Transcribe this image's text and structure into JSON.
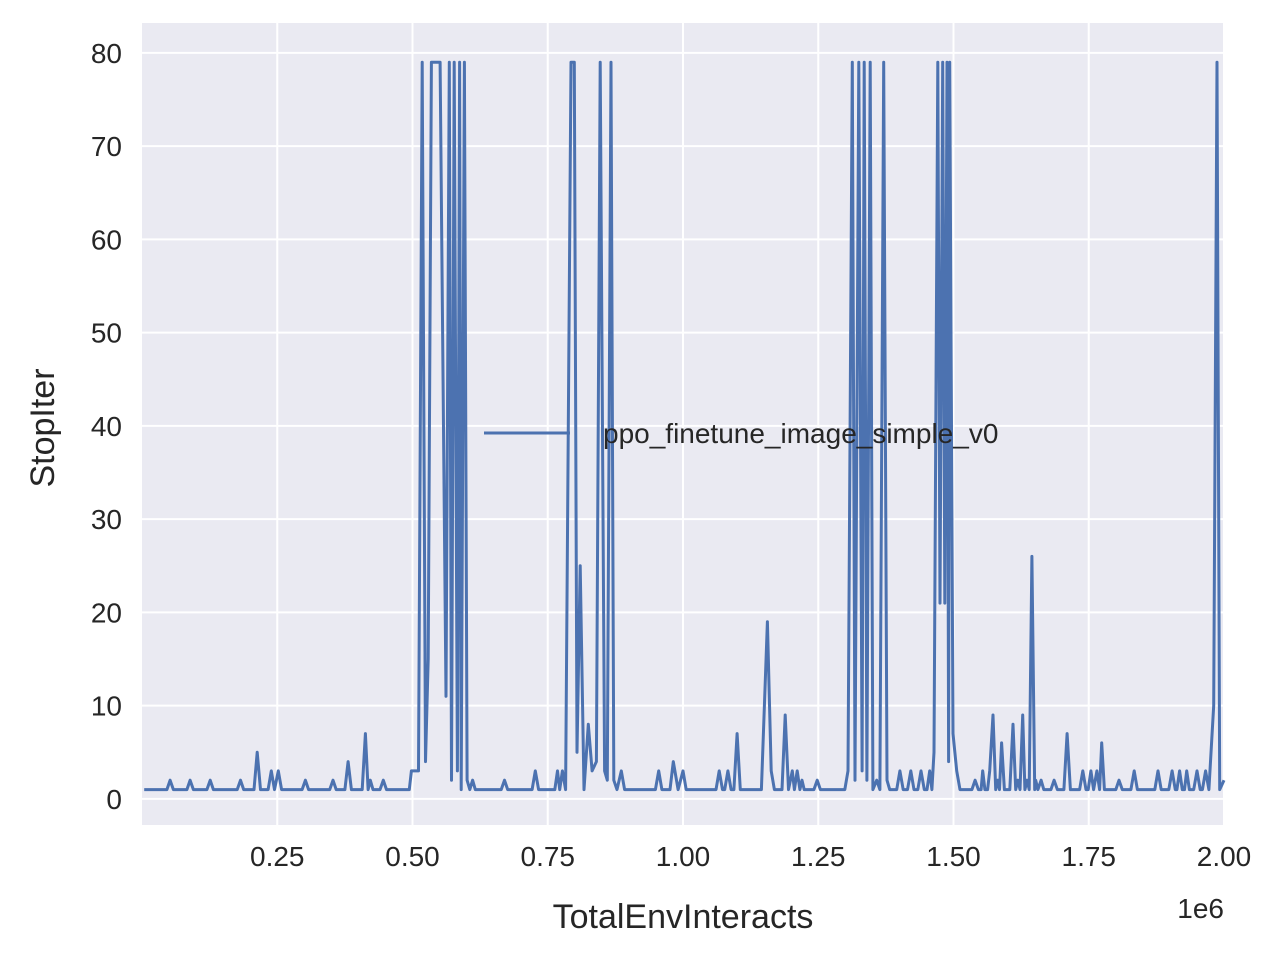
{
  "chart_data": {
    "type": "line",
    "x_label": "TotalEnvInteracts",
    "y_label": "StopIter",
    "x_offset_label": "1e6",
    "xlim": [
      0,
      2000000
    ],
    "ylim": [
      -2.8,
      83.2
    ],
    "xticks": [
      {
        "value": 250000,
        "label": "0.25"
      },
      {
        "value": 500000,
        "label": "0.50"
      },
      {
        "value": 750000,
        "label": "0.75"
      },
      {
        "value": 1000000,
        "label": "1.00"
      },
      {
        "value": 1250000,
        "label": "1.25"
      },
      {
        "value": 1500000,
        "label": "1.50"
      },
      {
        "value": 1750000,
        "label": "1.75"
      },
      {
        "value": 2000000,
        "label": "2.00"
      }
    ],
    "yticks": [
      0,
      10,
      20,
      30,
      40,
      50,
      60,
      70,
      80
    ],
    "grid": true,
    "legend": "center right",
    "x": [
      4000,
      46000,
      52000,
      58000,
      83000,
      89000,
      95000,
      120000,
      126000,
      132000,
      176000,
      182000,
      188000,
      207000,
      213000,
      219000,
      233000,
      239000,
      245000,
      252000,
      258000,
      296000,
      302000,
      308000,
      347000,
      353000,
      359000,
      375000,
      381000,
      387000,
      407000,
      413000,
      418000,
      422000,
      427000,
      440000,
      446000,
      452000,
      494000,
      498000,
      511000,
      518000,
      524000,
      529000,
      535000,
      551000,
      562000,
      568000,
      572000,
      577000,
      583000,
      587000,
      590000,
      596000,
      601000,
      606000,
      611000,
      616000,
      664000,
      670000,
      676000,
      721000,
      727000,
      733000,
      763000,
      768000,
      772000,
      777000,
      783000,
      793000,
      799000,
      804000,
      810000,
      817000,
      825000,
      832000,
      840000,
      847000,
      855000,
      860000,
      867000,
      872000,
      878000,
      886000,
      892000,
      949000,
      955000,
      961000,
      976000,
      982000,
      991000,
      1000000,
      1006000,
      1061000,
      1067000,
      1073000,
      1077000,
      1083000,
      1089000,
      1094000,
      1100000,
      1106000,
      1145000,
      1156000,
      1163000,
      1169000,
      1183000,
      1189000,
      1195000,
      1202000,
      1206000,
      1211000,
      1216000,
      1220000,
      1224000,
      1242000,
      1248000,
      1254000,
      1299000,
      1305000,
      1313000,
      1318000,
      1325000,
      1331000,
      1335000,
      1340000,
      1346000,
      1351000,
      1358000,
      1364000,
      1371000,
      1377000,
      1382000,
      1395000,
      1401000,
      1407000,
      1415000,
      1421000,
      1427000,
      1434000,
      1440000,
      1446000,
      1451000,
      1456000,
      1460000,
      1464000,
      1471000,
      1475000,
      1480000,
      1484000,
      1488000,
      1491000,
      1493000,
      1499000,
      1506000,
      1512000,
      1534000,
      1540000,
      1546000,
      1551000,
      1554000,
      1558000,
      1563000,
      1567000,
      1573000,
      1578000,
      1582000,
      1585000,
      1589000,
      1594000,
      1604000,
      1610000,
      1615000,
      1619000,
      1623000,
      1628000,
      1632000,
      1636000,
      1640000,
      1645000,
      1650000,
      1652000,
      1656000,
      1662000,
      1667000,
      1680000,
      1686000,
      1692000,
      1704000,
      1710000,
      1716000,
      1733000,
      1739000,
      1745000,
      1749000,
      1754000,
      1759000,
      1765000,
      1770000,
      1774000,
      1779000,
      1800000,
      1806000,
      1812000,
      1828000,
      1834000,
      1840000,
      1872000,
      1878000,
      1884000,
      1898000,
      1904000,
      1910000,
      1913000,
      1918000,
      1923000,
      1927000,
      1931000,
      1936000,
      1944000,
      1950000,
      1956000,
      1960000,
      1966000,
      1972000,
      1981000,
      1987000,
      1992000,
      2000000
    ],
    "series": [
      {
        "name": "ppo_finetune_image_simple_v0",
        "color": "#4c72b0",
        "values": [
          1,
          1,
          2,
          1,
          1,
          2,
          1,
          1,
          2,
          1,
          1,
          2,
          1,
          1,
          5,
          1,
          1,
          3,
          1,
          3,
          1,
          1,
          2,
          1,
          1,
          2,
          1,
          1,
          4,
          1,
          1,
          7,
          1,
          2,
          1,
          1,
          2,
          1,
          1,
          3,
          3,
          79,
          4,
          15,
          79,
          79,
          11,
          79,
          2,
          79,
          3,
          79,
          1,
          79,
          2,
          1,
          2,
          1,
          1,
          2,
          1,
          1,
          3,
          1,
          1,
          3,
          1,
          3,
          1,
          79,
          79,
          5,
          25,
          1,
          8,
          3,
          4,
          79,
          3,
          2,
          79,
          2,
          1,
          3,
          1,
          1,
          3,
          1,
          1,
          4,
          1,
          3,
          1,
          1,
          3,
          1,
          1,
          3,
          1,
          1,
          7,
          1,
          1,
          19,
          3,
          1,
          1,
          9,
          1,
          3,
          1,
          3,
          1,
          2,
          1,
          1,
          2,
          1,
          1,
          3,
          79,
          2,
          79,
          3,
          79,
          2,
          79,
          1,
          2,
          1,
          79,
          2,
          1,
          1,
          3,
          1,
          1,
          3,
          1,
          1,
          3,
          1,
          1,
          3,
          1,
          5,
          79,
          21,
          79,
          21,
          79,
          4,
          79,
          7,
          3,
          1,
          1,
          2,
          1,
          1,
          3,
          1,
          1,
          3,
          9,
          1,
          2,
          1,
          6,
          1,
          1,
          8,
          1,
          2,
          1,
          9,
          1,
          2,
          1,
          26,
          1,
          2,
          1,
          2,
          1,
          1,
          2,
          1,
          1,
          7,
          1,
          1,
          3,
          1,
          1,
          3,
          1,
          3,
          1,
          6,
          1,
          1,
          2,
          1,
          1,
          3,
          1,
          1,
          3,
          1,
          1,
          3,
          1,
          1,
          3,
          1,
          1,
          3,
          1,
          1,
          3,
          1,
          1,
          3,
          1,
          10,
          79,
          1,
          2
        ]
      }
    ]
  }
}
